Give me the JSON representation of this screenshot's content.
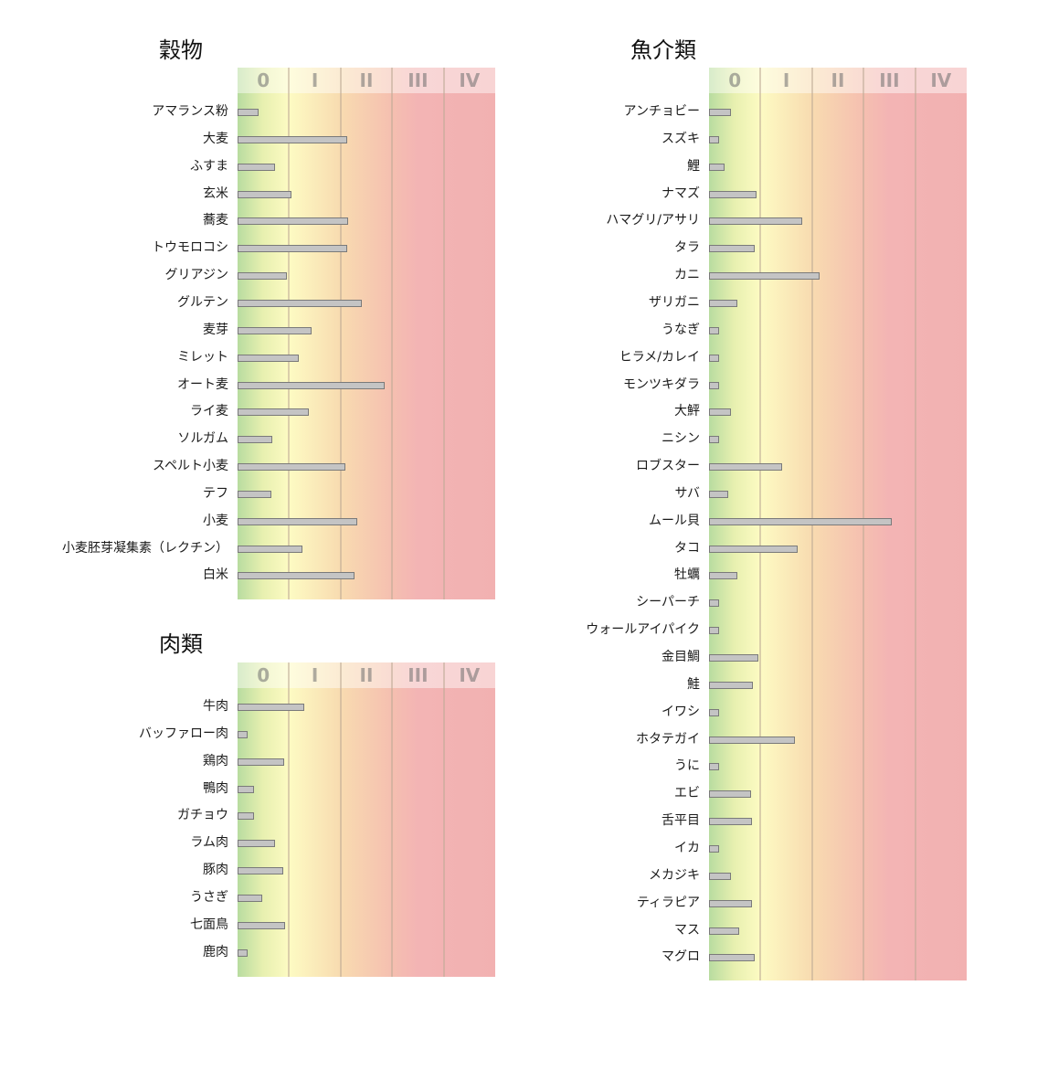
{
  "scale_labels": [
    "0",
    "I",
    "II",
    "III",
    "IV"
  ],
  "chart_data": [
    {
      "type": "bar",
      "title": "穀物",
      "orientation": "horizontal",
      "xlim": [
        0,
        5
      ],
      "categories": [
        "アマランス粉",
        "大麦",
        "ふすま",
        "玄米",
        "蕎麦",
        "トウモロコシ",
        "グリアジン",
        "グルテン",
        "麦芽",
        "ミレット",
        "オート麦",
        "ライ麦",
        "ソルガム",
        "スペルト小麦",
        "テフ",
        "小麦",
        "小麦胚芽凝集素（レクチン）",
        "白米"
      ],
      "values": [
        0.4,
        2.13,
        0.72,
        1.05,
        2.15,
        2.12,
        0.95,
        2.41,
        1.43,
        1.18,
        2.86,
        1.38,
        0.68,
        2.1,
        0.66,
        2.32,
        1.25,
        2.27
      ]
    },
    {
      "type": "bar",
      "title": "肉類",
      "orientation": "horizontal",
      "xlim": [
        0,
        5
      ],
      "categories": [
        "牛肉",
        "バッファロー肉",
        "鶏肉",
        "鴨肉",
        "ガチョウ",
        "ラム肉",
        "豚肉",
        "うさぎ",
        "七面鳥",
        "鹿肉"
      ],
      "values": [
        1.29,
        0.2,
        0.9,
        0.32,
        0.32,
        0.72,
        0.89,
        0.48,
        0.92,
        0.2
      ]
    },
    {
      "type": "bar",
      "title": "魚介類",
      "orientation": "horizontal",
      "xlim": [
        0,
        5
      ],
      "categories": [
        "アンチョビー",
        "スズキ",
        "鯉",
        "ナマズ",
        "ハマグリ/アサリ",
        "タラ",
        "カニ",
        "ザリガニ",
        "うなぎ",
        "ヒラメ/カレイ",
        "モンツキダラ",
        "大鮃",
        "ニシン",
        "ロブスター",
        "サバ",
        "ムール貝",
        "タコ",
        "牡蠣",
        "シーパーチ",
        "ウォールアイパイク",
        "金目鯛",
        "鮭",
        "イワシ",
        "ホタテガイ",
        "うに",
        "エビ",
        "舌平目",
        "イカ",
        "メカジキ",
        "ティラピア",
        "マス",
        "マグロ"
      ],
      "values": [
        0.42,
        0.2,
        0.3,
        0.93,
        1.81,
        0.88,
        2.14,
        0.55,
        0.2,
        0.2,
        0.2,
        0.42,
        0.2,
        1.42,
        0.37,
        3.54,
        1.72,
        0.55,
        0.2,
        0.2,
        0.95,
        0.85,
        0.2,
        1.66,
        0.2,
        0.82,
        0.84,
        0.2,
        0.42,
        0.84,
        0.58,
        0.88
      ]
    }
  ]
}
